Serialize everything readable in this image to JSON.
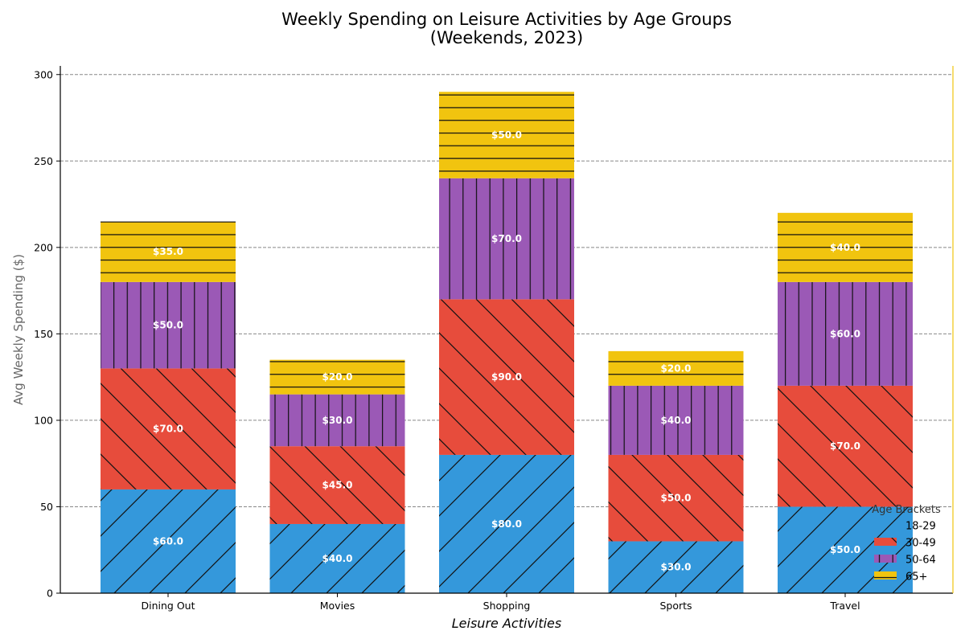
{
  "chart_data": {
    "type": "bar",
    "stacked": true,
    "title_line1": "Weekly Spending on Leisure Activities by Age Groups",
    "title_line2": "(Weekends, 2023)",
    "xlabel": "Leisure Activities",
    "ylabel": "Avg Weekly Spending ($)",
    "categories": [
      "Dining Out",
      "Movies",
      "Shopping",
      "Sports",
      "Travel"
    ],
    "ylim": [
      0,
      305
    ],
    "yticks": [
      0,
      50,
      100,
      150,
      200,
      250,
      300
    ],
    "grid": "horizontal dashed",
    "legend": {
      "title": "Age Brackets",
      "placement": "lower-right"
    },
    "series": [
      {
        "name": "18-29",
        "values": [
          60,
          40,
          80,
          30,
          50
        ],
        "color": "#3498db",
        "hatch": "forward-diagonal"
      },
      {
        "name": "30-49",
        "values": [
          70,
          45,
          90,
          50,
          70
        ],
        "color": "#e74c3c",
        "hatch": "back-diagonal"
      },
      {
        "name": "50-64",
        "values": [
          50,
          30,
          70,
          40,
          60
        ],
        "color": "#9b59b6",
        "hatch": "vertical"
      },
      {
        "name": "65+",
        "values": [
          35,
          20,
          50,
          20,
          40
        ],
        "color": "#f1c40f",
        "hatch": "horizontal"
      }
    ],
    "data_labels": [
      [
        "$60.0",
        "$40.0",
        "$80.0",
        "$30.0",
        "$50.0"
      ],
      [
        "$70.0",
        "$45.0",
        "$90.0",
        "$50.0",
        "$70.0"
      ],
      [
        "$50.0",
        "$30.0",
        "$70.0",
        "$40.0",
        "$60.0"
      ],
      [
        "$35.0",
        "$20.0",
        "$50.0",
        "$20.0",
        "$40.0"
      ]
    ]
  }
}
